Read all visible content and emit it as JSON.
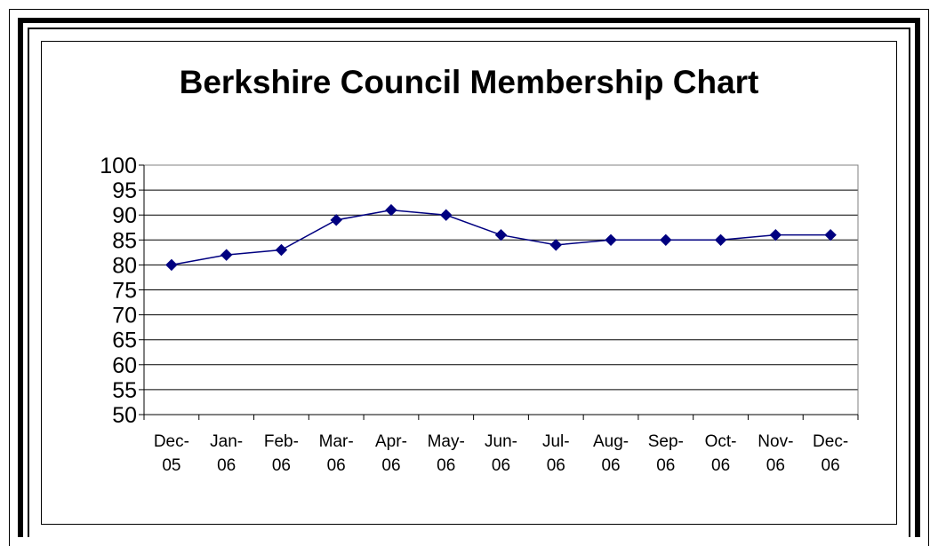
{
  "chart_data": {
    "type": "line",
    "title": "Berkshire Council Membership Chart",
    "xlabel": "",
    "ylabel": "",
    "categories": [
      [
        "Dec-",
        "05"
      ],
      [
        "Jan-",
        "06"
      ],
      [
        "Feb-",
        "06"
      ],
      [
        "Mar-",
        "06"
      ],
      [
        "Apr-",
        "06"
      ],
      [
        "May-",
        "06"
      ],
      [
        "Jun-",
        "06"
      ],
      [
        "Jul-",
        "06"
      ],
      [
        "Aug-",
        "06"
      ],
      [
        "Sep-",
        "06"
      ],
      [
        "Oct-",
        "06"
      ],
      [
        "Nov-",
        "06"
      ],
      [
        "Dec-",
        "06"
      ]
    ],
    "series": [
      {
        "values": [
          80,
          82,
          83,
          89,
          91,
          90,
          86,
          84,
          85,
          85,
          85,
          86,
          86
        ]
      }
    ],
    "ylim": [
      50,
      100
    ],
    "yticks": [
      50,
      55,
      60,
      65,
      70,
      75,
      80,
      85,
      90,
      95,
      100
    ],
    "grid": "horizontal",
    "legend": "none",
    "colors": {
      "line": "#000080",
      "marker": "#000080",
      "gridline": "#000000",
      "axis_frame": "#808080"
    }
  }
}
